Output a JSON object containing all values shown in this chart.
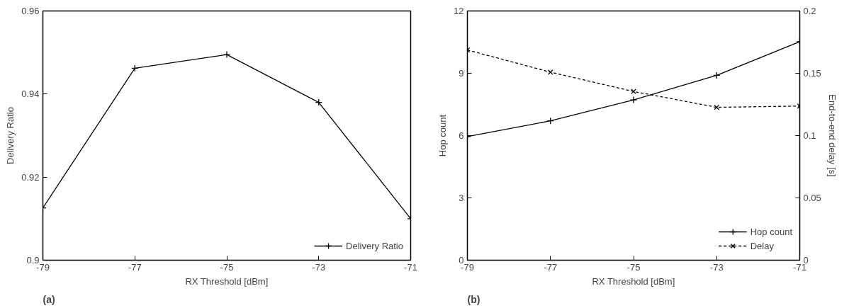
{
  "chart_data": [
    {
      "type": "line",
      "xlabel": "RX Threshold [dBm]",
      "ylabel": "Delivery Ratio",
      "annotations": [
        "(a)"
      ],
      "x": [
        -79,
        -77,
        -75,
        -73,
        -71
      ],
      "xlim": [
        -79,
        -71
      ],
      "xticks": [
        -79,
        -77,
        -75,
        -73,
        -71
      ],
      "ylim": [
        0.9,
        0.96
      ],
      "yticks": [
        0.9,
        0.92,
        0.94,
        0.96
      ],
      "grid": false,
      "legend": "bottom right",
      "marker": "cross",
      "line_style": "solid",
      "series": [
        {
          "name": "Delivery Ratio",
          "color": "#000000",
          "values": [
            0.9126,
            0.9462,
            0.9495,
            0.938,
            0.91
          ]
        }
      ]
    },
    {
      "type": "line",
      "xlabel": "RX Threshold [dBm]",
      "ylabel": "Hop count",
      "y2label": "End-to-end delay [s]",
      "annotations": [
        "(b)"
      ],
      "x": [
        -79,
        -77,
        -75,
        -73,
        -71
      ],
      "xlim": [
        -79,
        -71
      ],
      "xticks": [
        -79,
        -77,
        -75,
        -73,
        -71
      ],
      "ylim": [
        0,
        12
      ],
      "yticks": [
        0,
        3,
        6,
        9,
        12
      ],
      "y2lim": [
        0,
        0.2
      ],
      "y2ticks": [
        0,
        0.05,
        0.1,
        0.15,
        0.2
      ],
      "grid": false,
      "legend": "bottom right",
      "series": [
        {
          "name": "Hop count",
          "color": "#000000",
          "marker": "cross",
          "line_style": "solid",
          "values": [
            5.95,
            6.71,
            7.72,
            8.9,
            10.52
          ]
        },
        {
          "name": "Delay",
          "color": "#000000",
          "marker": "x",
          "line_style": "dashed",
          "axis": "y2",
          "values": [
            0.1687,
            0.1509,
            0.1354,
            0.1227,
            0.1237
          ]
        }
      ]
    }
  ]
}
